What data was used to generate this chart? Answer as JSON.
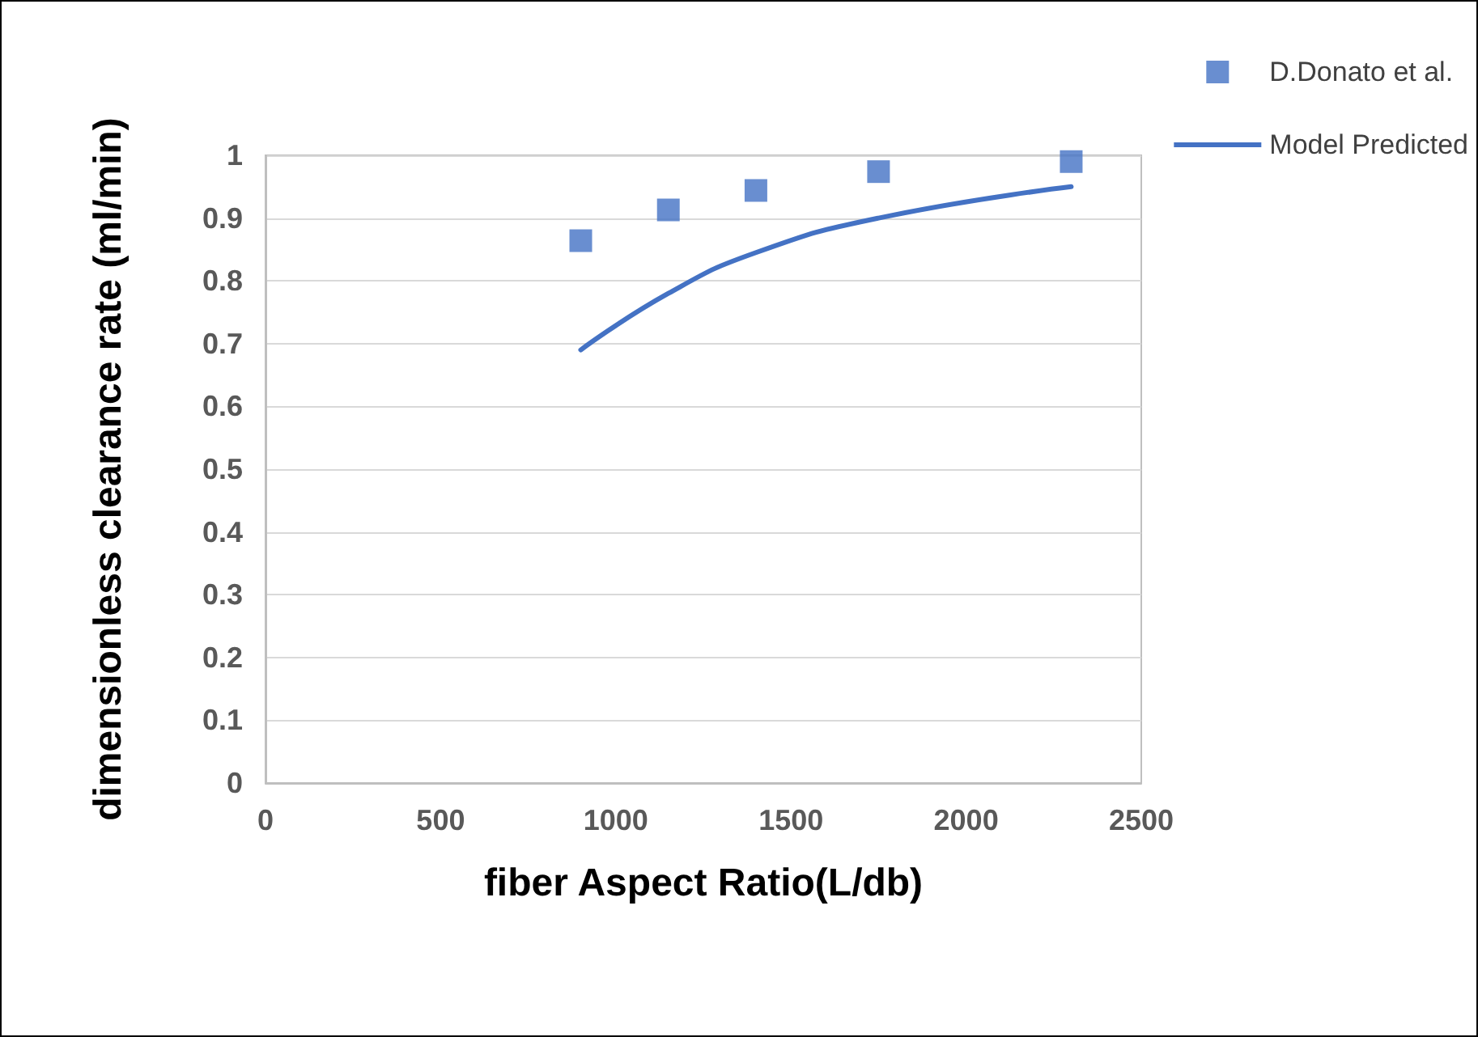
{
  "chart_data": {
    "type": "scatter",
    "xlabel": "fiber Aspect Ratio(L/db)",
    "ylabel": "dimensionless clearance rate (ml/min)",
    "xlim": [
      0,
      2500
    ],
    "xticks": [
      0,
      500,
      1000,
      1500,
      2000,
      2500
    ],
    "ylim": [
      0,
      1
    ],
    "yticks": [
      0,
      0.1,
      0.2,
      0.3,
      0.4,
      0.5,
      0.6,
      0.7,
      0.8,
      0.9,
      1
    ],
    "grid": "y",
    "legend": "top right",
    "series": [
      {
        "name": "D.Donato et al.",
        "type": "scatter",
        "marker": "square",
        "color": "#4472c4",
        "x": [
          900,
          1150,
          1400,
          1750,
          2300
        ],
        "values": [
          0.864,
          0.913,
          0.944,
          0.974,
          0.99
        ]
      },
      {
        "name": "Model Predicted",
        "type": "line",
        "marker": "none",
        "line_style": "solid",
        "color": "#4472c4",
        "x": [
          900,
          1150,
          1400,
          1750,
          2300
        ],
        "values": [
          0.69,
          0.78,
          0.845,
          0.9,
          0.95
        ]
      }
    ]
  }
}
